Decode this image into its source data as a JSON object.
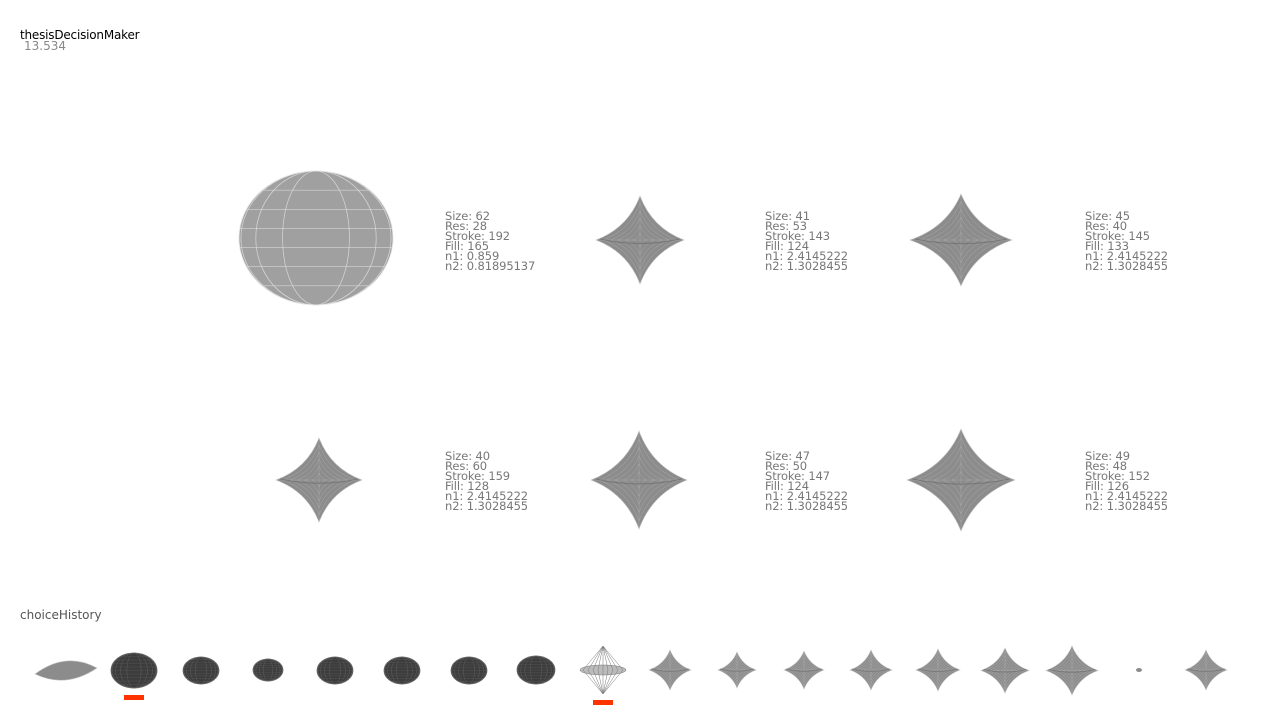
{
  "app": {
    "title": "thesisDecisionMaker",
    "counter": "13.534"
  },
  "history_title": "choiceHistory",
  "colors": {
    "marker": "#ff3300",
    "shape_fill": "#8c8c8c",
    "shape_stroke": "#c4c4c4",
    "thumb_dark": "#3c3c3c"
  },
  "options": [
    {
      "size": "Size: 62",
      "res": "Res: 28",
      "stroke": "Stroke: 192",
      "fill": "Fill: 165",
      "n1": "n1: 0.859",
      "n2": "n2: 0.81895137"
    },
    {
      "size": "Size: 41",
      "res": "Res: 53",
      "stroke": "Stroke: 143",
      "fill": "Fill: 124",
      "n1": "n1: 2.4145222",
      "n2": "n2: 1.3028455"
    },
    {
      "size": "Size: 45",
      "res": "Res: 40",
      "stroke": "Stroke: 145",
      "fill": "Fill: 133",
      "n1": "n1: 2.4145222",
      "n2": "n2: 1.3028455"
    },
    {
      "size": "Size: 40",
      "res": "Res: 60",
      "stroke": "Stroke: 159",
      "fill": "Fill: 128",
      "n1": "n1: 2.4145222",
      "n2": "n2: 1.3028455"
    },
    {
      "size": "Size: 47",
      "res": "Res: 50",
      "stroke": "Stroke: 147",
      "fill": "Fill: 124",
      "n1": "n1: 2.4145222",
      "n2": "n2: 1.3028455"
    },
    {
      "size": "Size: 49",
      "res": "Res: 48",
      "stroke": "Stroke: 152",
      "fill": "Fill: 126",
      "n1": "n1: 2.4145222",
      "n2": "n2: 1.3028455"
    }
  ],
  "history": [
    {
      "kind": "plate",
      "tone": "mid",
      "marked": false
    },
    {
      "kind": "blob",
      "tone": "dark",
      "marked": true
    },
    {
      "kind": "blob",
      "tone": "dark",
      "marked": false
    },
    {
      "kind": "blob",
      "tone": "dark",
      "marked": false
    },
    {
      "kind": "blob",
      "tone": "dark",
      "marked": false
    },
    {
      "kind": "blob",
      "tone": "dark",
      "marked": false
    },
    {
      "kind": "blob",
      "tone": "dark",
      "marked": false
    },
    {
      "kind": "blob",
      "tone": "dark",
      "marked": false
    },
    {
      "kind": "spindle",
      "tone": "light",
      "marked": true
    },
    {
      "kind": "star",
      "tone": "mid",
      "marked": false
    },
    {
      "kind": "star",
      "tone": "mid",
      "marked": false
    },
    {
      "kind": "star",
      "tone": "mid",
      "marked": false
    },
    {
      "kind": "star",
      "tone": "mid",
      "marked": false
    },
    {
      "kind": "star",
      "tone": "mid",
      "marked": false
    },
    {
      "kind": "star",
      "tone": "mid",
      "marked": false
    },
    {
      "kind": "star",
      "tone": "mid",
      "marked": false
    },
    {
      "kind": "speck",
      "tone": "mid",
      "marked": false
    },
    {
      "kind": "star",
      "tone": "mid",
      "marked": false
    }
  ]
}
